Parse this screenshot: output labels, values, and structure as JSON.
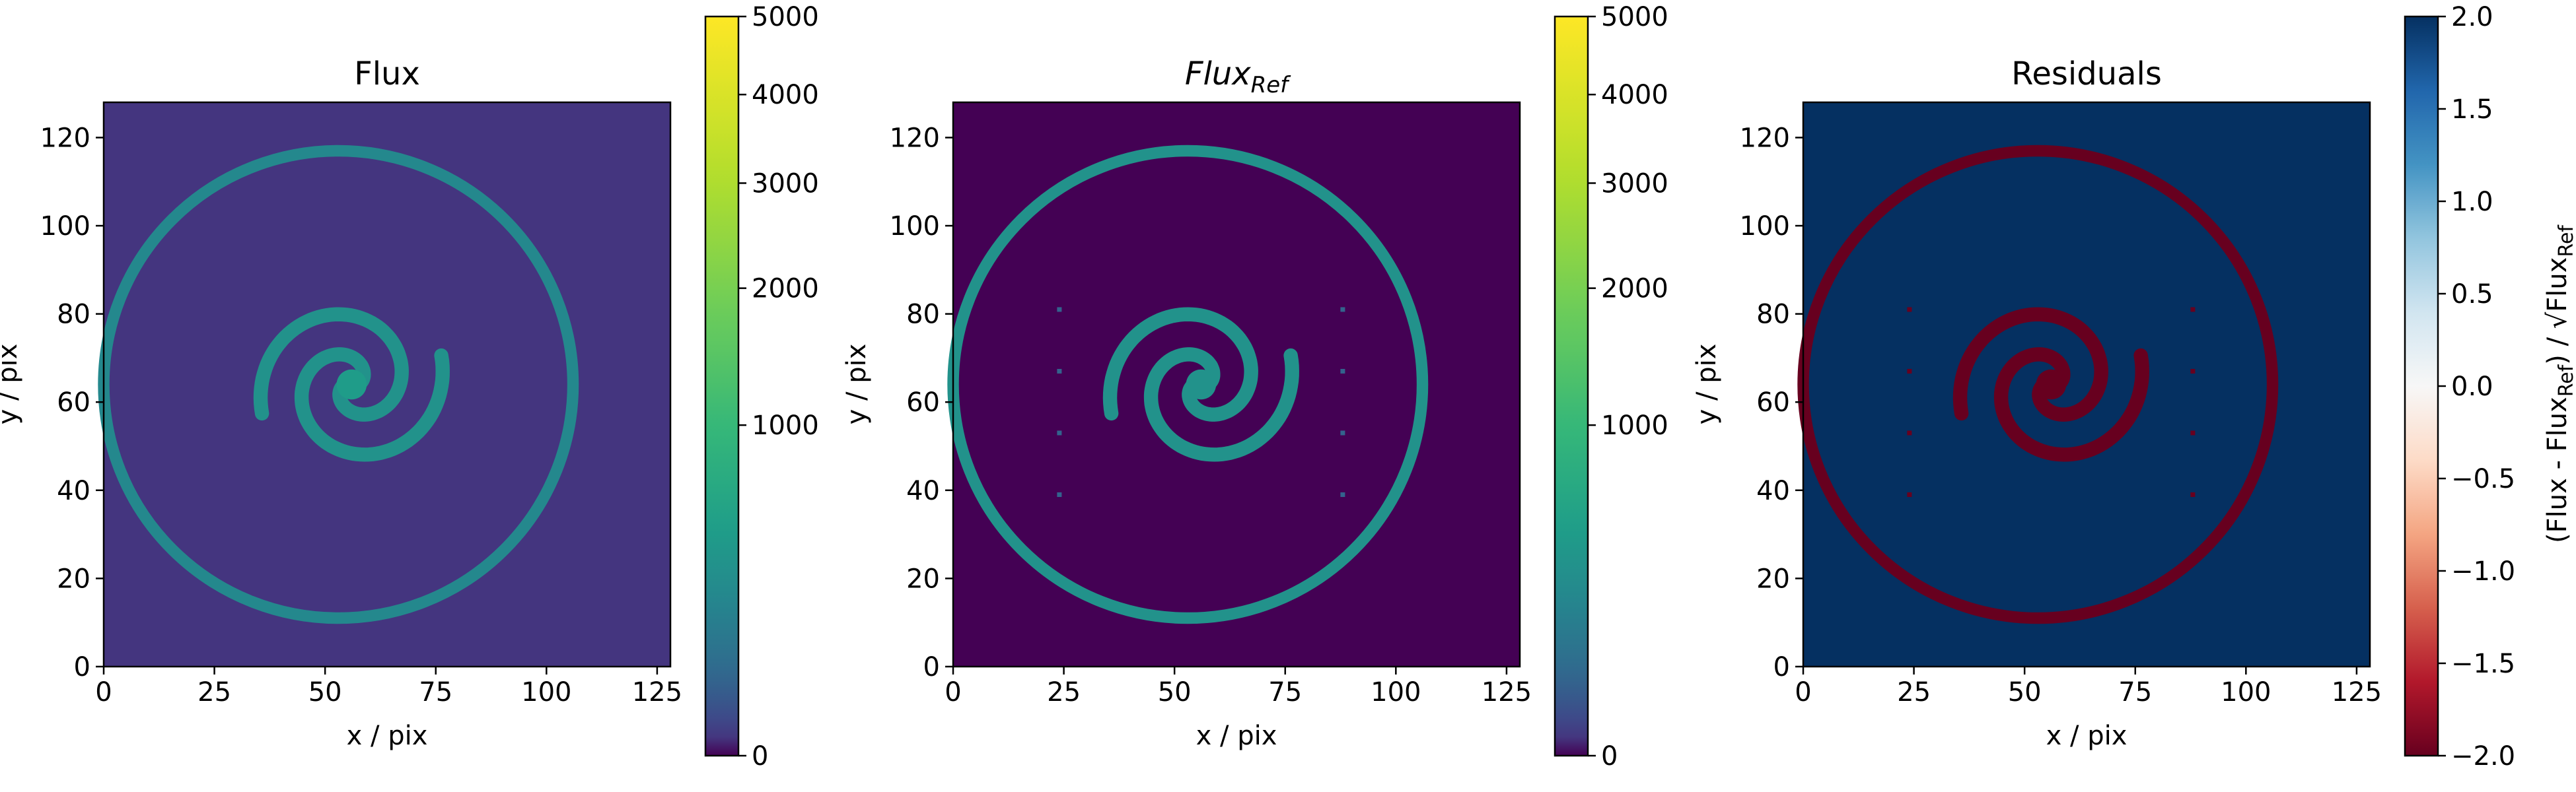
{
  "chart_data": [
    {
      "type": "heatmap",
      "title": "Flux",
      "xlabel": "x / pix",
      "ylabel": "y / pix",
      "xlim": [
        0,
        128
      ],
      "ylim": [
        0,
        128
      ],
      "xticks": [
        "0",
        "25",
        "50",
        "75",
        "100",
        "125"
      ],
      "yticks": [
        "0",
        "20",
        "40",
        "60",
        "80",
        "100",
        "120"
      ],
      "colormap": "viridis",
      "color_scale": "sqrt",
      "colorbar": {
        "ticks": [
          "0",
          "1000",
          "2000",
          "3000",
          "4000",
          "5000"
        ],
        "range": [
          0,
          5000
        ],
        "label": ""
      },
      "background_value": 120,
      "features": {
        "ring": {
          "center": [
            53,
            64
          ],
          "radius": 53,
          "value": 1100
        },
        "spiral": {
          "center": [
            53,
            64
          ],
          "value": 1300,
          "core_value": 1500
        },
        "dots": []
      }
    },
    {
      "type": "heatmap",
      "title_main": "Flux",
      "title_sub": "Ref",
      "xlabel": "x / pix",
      "ylabel": "y / pix",
      "xlim": [
        0,
        128
      ],
      "ylim": [
        0,
        128
      ],
      "xticks": [
        "0",
        "25",
        "50",
        "75",
        "100",
        "125"
      ],
      "yticks": [
        "0",
        "20",
        "40",
        "60",
        "80",
        "100",
        "120"
      ],
      "colormap": "viridis",
      "color_scale": "sqrt",
      "colorbar": {
        "ticks": [
          "0",
          "1000",
          "2000",
          "3000",
          "4000",
          "5000"
        ],
        "range": [
          0,
          5000
        ],
        "label": ""
      },
      "background_value": 0,
      "features": {
        "ring": {
          "center": [
            53,
            64
          ],
          "radius": 53,
          "value": 1300
        },
        "spiral": {
          "center": [
            53,
            64
          ],
          "value": 1300,
          "core_value": 1300
        },
        "dots": [
          [
            24,
            81,
            500
          ],
          [
            24,
            67,
            500
          ],
          [
            24,
            53,
            500
          ],
          [
            24,
            39,
            500
          ],
          [
            88,
            81,
            500
          ],
          [
            88,
            67,
            500
          ],
          [
            88,
            53,
            500
          ],
          [
            88,
            39,
            500
          ]
        ]
      }
    },
    {
      "type": "heatmap",
      "title": "Residuals",
      "xlabel": "x / pix",
      "ylabel": "y / pix",
      "xlim": [
        0,
        128
      ],
      "ylim": [
        0,
        128
      ],
      "xticks": [
        "0",
        "25",
        "50",
        "75",
        "100",
        "125"
      ],
      "yticks": [
        "0",
        "20",
        "40",
        "60",
        "80",
        "100",
        "120"
      ],
      "colormap": "RdBu",
      "color_scale": "linear",
      "colorbar": {
        "ticks": [
          "−2.0",
          "−1.5",
          "−1.0",
          "−0.5",
          "0.0",
          "0.5",
          "1.0",
          "1.5",
          "2.0"
        ],
        "range": [
          -2.0,
          2.0
        ],
        "label_parts": [
          "(Flux - Flux",
          "Ref",
          ") / √Flux",
          "Ref"
        ]
      },
      "background_value": 2.0,
      "features": {
        "ring": {
          "center": [
            53,
            64
          ],
          "radius": 53,
          "value": -2.0
        },
        "spiral": {
          "center": [
            53,
            64
          ],
          "value": -2.0,
          "core_value": -2.0
        },
        "dots": [
          [
            24,
            81,
            -2.0
          ],
          [
            24,
            67,
            -2.0
          ],
          [
            24,
            53,
            -2.0
          ],
          [
            24,
            39,
            -2.0
          ],
          [
            88,
            81,
            -2.0
          ],
          [
            88,
            67,
            -2.0
          ],
          [
            88,
            53,
            -2.0
          ],
          [
            88,
            39,
            -2.0
          ]
        ]
      }
    }
  ]
}
